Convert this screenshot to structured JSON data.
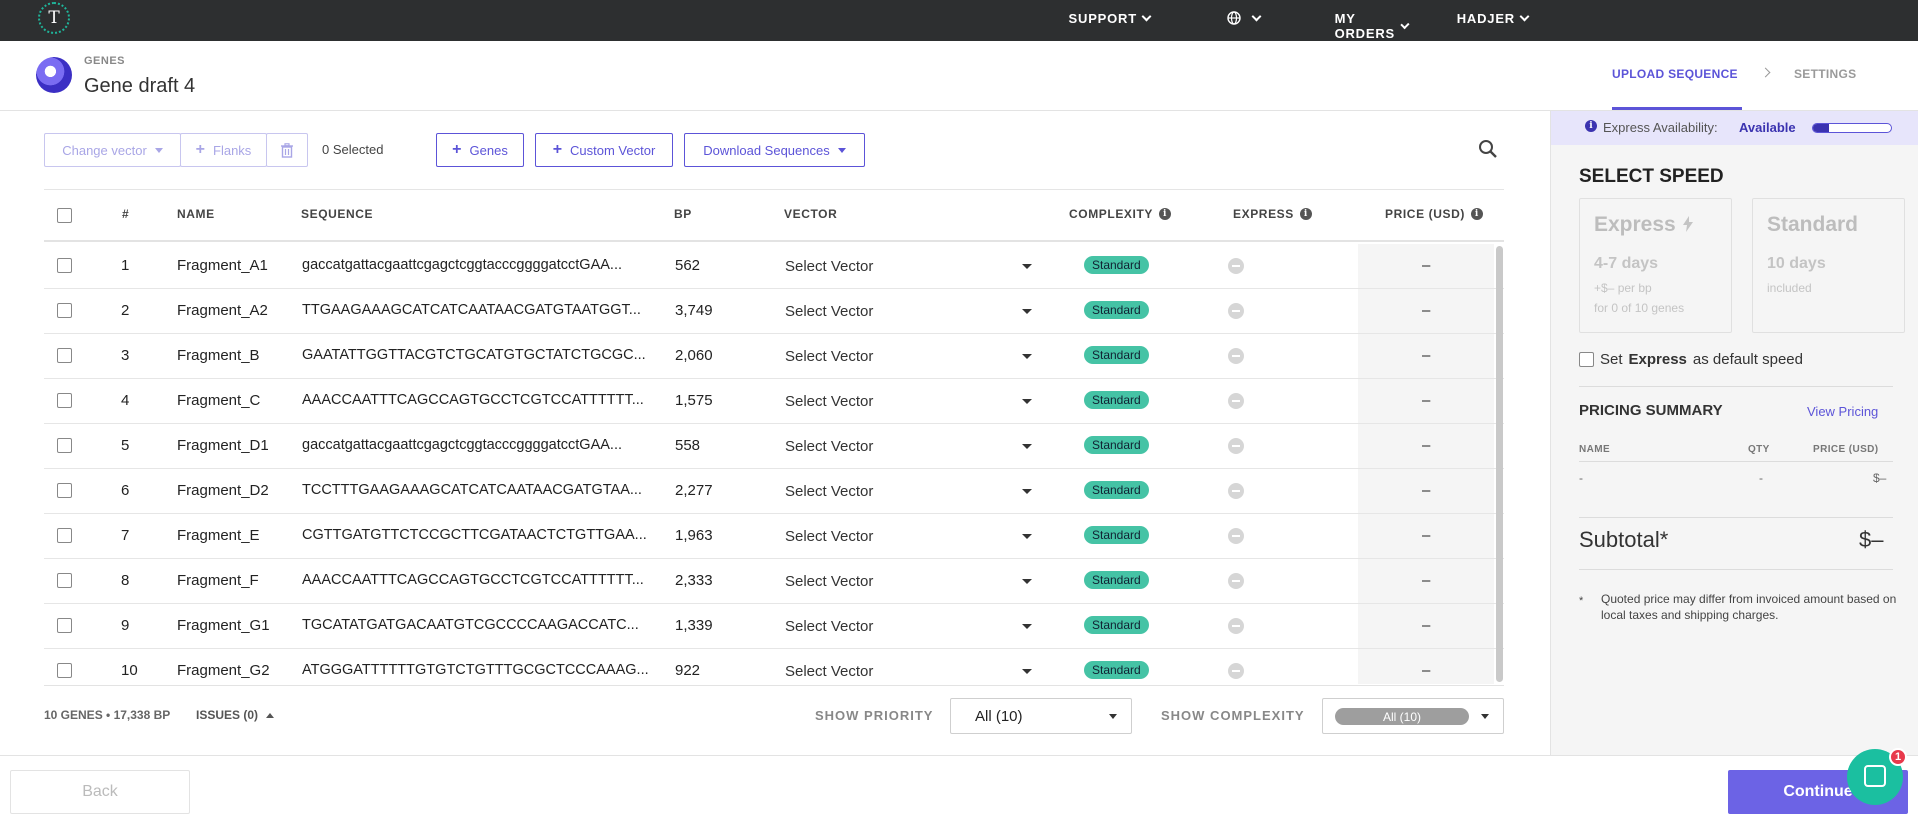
{
  "topbar": {
    "logo_letter": "T",
    "nav": [
      {
        "label": "SUPPORT"
      },
      {
        "label": ""
      },
      {
        "label": "MY ORDERS"
      },
      {
        "label": "HADJER"
      }
    ]
  },
  "header": {
    "kicker": "GENES",
    "title": "Gene draft 4",
    "steps": [
      "UPLOAD SEQUENCE",
      "SETTINGS"
    ]
  },
  "toolbar": {
    "change_vector": "Change vector",
    "flanks": "Flanks",
    "selected": "0 Selected",
    "genes": "Genes",
    "custom_vector": "Custom Vector",
    "download": "Download Sequences"
  },
  "table": {
    "headers": {
      "num": "#",
      "name": "NAME",
      "sequence": "SEQUENCE",
      "bp": "BP",
      "vector": "VECTOR",
      "complexity": "COMPLEXITY",
      "express": "EXPRESS",
      "price": "PRICE (USD)"
    },
    "rows": [
      {
        "num": "1",
        "name": "Fragment_A1",
        "sequence": "gaccatgattacgaattcgagctcggtacccggggatcctGAA...",
        "bp": "562",
        "vector": "Select Vector",
        "complexity": "Standard",
        "price": "–"
      },
      {
        "num": "2",
        "name": "Fragment_A2",
        "sequence": "TTGAAGAAAGCATCATCAATAACGATGTAATGGT...",
        "bp": "3,749",
        "vector": "Select Vector",
        "complexity": "Standard",
        "price": "–"
      },
      {
        "num": "3",
        "name": "Fragment_B",
        "sequence": "GAATATTGGTTACGTCTGCATGTGCTATCTGCGC...",
        "bp": "2,060",
        "vector": "Select Vector",
        "complexity": "Standard",
        "price": "–"
      },
      {
        "num": "4",
        "name": "Fragment_C",
        "sequence": "AAACCAATTTCAGCCAGTGCCTCGTCCATTTTTT...",
        "bp": "1,575",
        "vector": "Select Vector",
        "complexity": "Standard",
        "price": "–"
      },
      {
        "num": "5",
        "name": "Fragment_D1",
        "sequence": "gaccatgattacgaattcgagctcggtacccggggatcctGAA...",
        "bp": "558",
        "vector": "Select Vector",
        "complexity": "Standard",
        "price": "–"
      },
      {
        "num": "6",
        "name": "Fragment_D2",
        "sequence": "TCCTTTGAAGAAAGCATCATCAATAACGATGTAA...",
        "bp": "2,277",
        "vector": "Select Vector",
        "complexity": "Standard",
        "price": "–"
      },
      {
        "num": "7",
        "name": "Fragment_E",
        "sequence": "CGTTGATGTTCTCCGCTTCGATAACTCTGTTGAA...",
        "bp": "1,963",
        "vector": "Select Vector",
        "complexity": "Standard",
        "price": "–"
      },
      {
        "num": "8",
        "name": "Fragment_F",
        "sequence": "AAACCAATTTCAGCCAGTGCCTCGTCCATTTTTT...",
        "bp": "2,333",
        "vector": "Select Vector",
        "complexity": "Standard",
        "price": "–"
      },
      {
        "num": "9",
        "name": "Fragment_G1",
        "sequence": "TGCATATGATGACAATGTCGCCCCAAGACCATC...",
        "bp": "1,339",
        "vector": "Select Vector",
        "complexity": "Standard",
        "price": "–"
      },
      {
        "num": "10",
        "name": "Fragment_G2",
        "sequence": "ATGGGATTTTTTGTGTCTGTTTGCGCTCCCAAAG...",
        "bp": "922",
        "vector": "Select Vector",
        "complexity": "Standard",
        "price": "–"
      }
    ]
  },
  "footer": {
    "summary": "10 GENES • 17,338 BP",
    "issues": "ISSUES (0)",
    "show_priority": "SHOW PRIORITY",
    "priority_value": "All (10)",
    "show_complexity": "SHOW COMPLEXITY",
    "complexity_value": "All (10)"
  },
  "panel": {
    "availability_label": "Express Availability:",
    "availability_value": "Available",
    "availability_level": 0.2,
    "select_speed": "SELECT SPEED",
    "express": {
      "name": "Express",
      "days": "4-7 days",
      "price": "+$– per bp",
      "note": "for 0 of 10 genes"
    },
    "standard": {
      "name": "Standard",
      "days": "10 days",
      "note": "included"
    },
    "default_prefix": "Set",
    "default_bold": "Express",
    "default_suffix": "as default speed",
    "pricing_summary": "PRICING SUMMARY",
    "view_pricing": "View Pricing",
    "col_name": "NAME",
    "col_qty": "QTY",
    "col_price": "PRICE (USD)",
    "val_name": "-",
    "val_qty": "-",
    "val_price": "$–",
    "subtotal_label": "Subtotal*",
    "subtotal_value": "$–",
    "note_star": "*",
    "note": "Quoted price may differ from invoiced amount based on local taxes and shipping charges."
  },
  "bottom": {
    "back": "Back",
    "continue": "Continue",
    "chat_badge": "1"
  },
  "colors": {
    "accent": "#5c54d8",
    "badge": "#45c3a5",
    "topbar": "#2d2f30"
  }
}
